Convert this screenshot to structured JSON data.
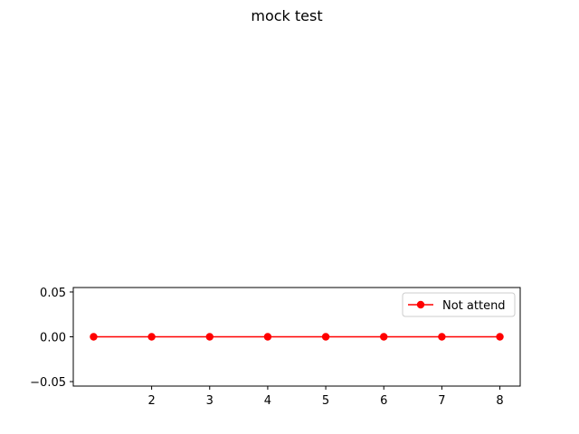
{
  "chart_data": {
    "type": "line",
    "title": "mock test",
    "xlabel": "",
    "ylabel": "",
    "x": [
      1,
      2,
      3,
      4,
      5,
      6,
      7,
      8
    ],
    "series": [
      {
        "name": "Not attend",
        "values": [
          0,
          0,
          0,
          0,
          0,
          0,
          0,
          0
        ],
        "color": "#ff0000",
        "marker": "circle"
      }
    ],
    "xlim": [
      0.65,
      8.35
    ],
    "ylim": [
      -0.055,
      0.055
    ],
    "x_ticks": [
      2,
      3,
      4,
      5,
      6,
      7,
      8
    ],
    "x_tick_labels": [
      "2",
      "3",
      "4",
      "5",
      "6",
      "7",
      "8"
    ],
    "y_ticks": [
      0.05,
      0.0,
      -0.05
    ],
    "y_tick_labels": [
      "0.05",
      "0.00",
      "−0.05"
    ],
    "grid": false,
    "legend": {
      "position": "upper right"
    }
  }
}
